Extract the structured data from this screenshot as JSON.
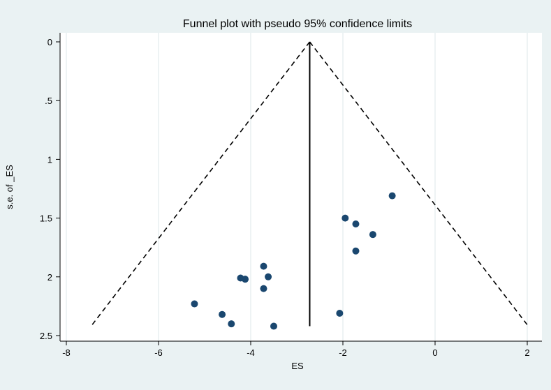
{
  "chart_data": {
    "type": "scatter",
    "title": "Funnel plot with pseudo 95% confidence limits",
    "xlabel": "ES",
    "ylabel": "s.e. of _ES",
    "xlim": [
      -8.2,
      2.05
    ],
    "ylim": [
      0,
      2.5
    ],
    "y_reversed": true,
    "grid": "vertical",
    "x_ticks": [
      -8,
      -6,
      -4,
      -2,
      0,
      2
    ],
    "y_ticks": [
      0,
      0.5,
      1,
      1.5,
      2,
      2.5
    ],
    "x_tick_labels": [
      "-8",
      "-6",
      "-4",
      "-2",
      "0",
      "2"
    ],
    "y_tick_labels": [
      "0",
      ".5",
      "1",
      "1.5",
      "2",
      "2.5"
    ],
    "pooled_estimate": -2.72,
    "max_se": 2.42,
    "confidence_z": 1.96,
    "points": [
      {
        "x": -0.93,
        "y": 1.31
      },
      {
        "x": -1.95,
        "y": 1.5
      },
      {
        "x": -1.72,
        "y": 1.55
      },
      {
        "x": -1.35,
        "y": 1.64
      },
      {
        "x": -1.72,
        "y": 1.78
      },
      {
        "x": -3.72,
        "y": 1.91
      },
      {
        "x": -4.22,
        "y": 2.01
      },
      {
        "x": -4.12,
        "y": 2.02
      },
      {
        "x": -3.62,
        "y": 2.0
      },
      {
        "x": -3.72,
        "y": 2.1
      },
      {
        "x": -5.22,
        "y": 2.23
      },
      {
        "x": -4.62,
        "y": 2.32
      },
      {
        "x": -2.07,
        "y": 2.31
      },
      {
        "x": -4.42,
        "y": 2.4
      },
      {
        "x": -3.5,
        "y": 2.42
      }
    ],
    "colors": {
      "background": "#eaf2f3",
      "plot_background": "#ffffff",
      "grid": "#dde7ea",
      "marker": "#1a476f",
      "lines": "#000000"
    }
  }
}
